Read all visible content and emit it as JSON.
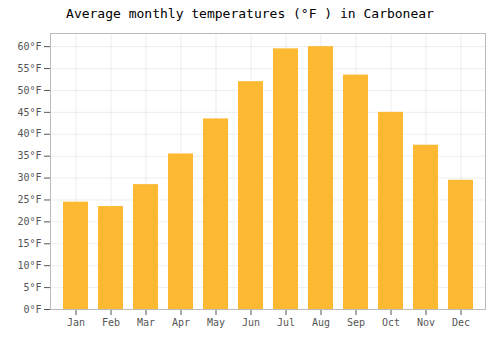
{
  "chart_data": {
    "type": "bar",
    "title": "Average monthly temperatures (°F ) in Carbonear",
    "categories": [
      "Jan",
      "Feb",
      "Mar",
      "Apr",
      "May",
      "Jun",
      "Jul",
      "Aug",
      "Sep",
      "Oct",
      "Nov",
      "Dec"
    ],
    "values": [
      24.5,
      23.5,
      28.5,
      35.5,
      43.5,
      52.0,
      59.5,
      60.0,
      53.5,
      45.0,
      37.5,
      29.5
    ],
    "color": "#FDB932",
    "ylim": [
      0,
      63
    ],
    "yticks": [
      {
        "value": 0,
        "label": "0°F"
      },
      {
        "value": 5,
        "label": "5°F"
      },
      {
        "value": 10,
        "label": "10°F"
      },
      {
        "value": 15,
        "label": "15°F"
      },
      {
        "value": 20,
        "label": "20°F"
      },
      {
        "value": 25,
        "label": "25°F"
      },
      {
        "value": 30,
        "label": "30°F"
      },
      {
        "value": 35,
        "label": "35°F"
      },
      {
        "value": 40,
        "label": "40°F"
      },
      {
        "value": 45,
        "label": "45°F"
      },
      {
        "value": 50,
        "label": "50°F"
      },
      {
        "value": 55,
        "label": "55°F"
      },
      {
        "value": 60,
        "label": "60°F"
      }
    ],
    "grid": true
  }
}
